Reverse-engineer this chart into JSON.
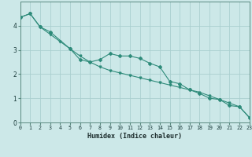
{
  "x_all": [
    0,
    1,
    2,
    3,
    4,
    5,
    6,
    7,
    8,
    9,
    10,
    11,
    12,
    13,
    14,
    15,
    16,
    17,
    18,
    19,
    20,
    21,
    22,
    23
  ],
  "line_jagged": [
    4.35,
    4.5,
    3.95,
    3.75,
    null,
    3.05,
    2.6,
    2.5,
    2.6,
    2.85,
    2.75,
    2.75,
    2.65,
    2.45,
    2.3,
    1.7,
    1.6,
    1.35,
    1.2,
    1.0,
    0.95,
    0.7,
    0.65,
    0.2
  ],
  "line_straight": [
    4.35,
    4.5,
    3.95,
    3.65,
    3.35,
    3.05,
    2.75,
    2.5,
    2.3,
    2.15,
    2.05,
    1.95,
    1.85,
    1.75,
    1.65,
    1.55,
    1.45,
    1.35,
    1.25,
    1.1,
    0.95,
    0.8,
    0.65,
    0.2
  ],
  "line_color": "#2e8b7a",
  "bg_color": "#cce8e8",
  "grid_color": "#aacfcf",
  "xlabel": "Humidex (Indice chaleur)",
  "xlim": [
    0,
    23
  ],
  "ylim": [
    0,
    5
  ],
  "yticks": [
    0,
    1,
    2,
    3,
    4
  ],
  "xticks": [
    0,
    1,
    2,
    3,
    4,
    5,
    6,
    7,
    8,
    9,
    10,
    11,
    12,
    13,
    14,
    15,
    16,
    17,
    18,
    19,
    20,
    21,
    22,
    23
  ]
}
